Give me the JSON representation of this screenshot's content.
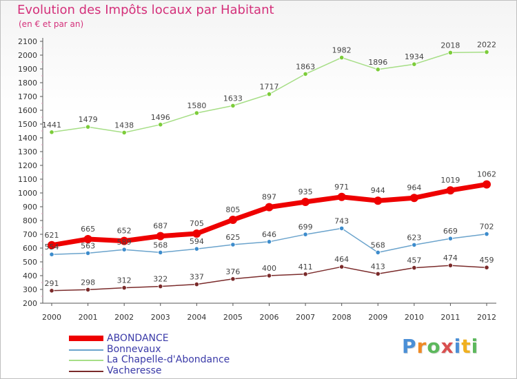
{
  "header": {
    "title": "Evolution des Impôts locaux par Habitant",
    "subtitle": "(en € et par an)"
  },
  "logo": {
    "text": "Proxiti"
  },
  "chart_data": {
    "type": "line",
    "x": [
      "2000",
      "2001",
      "2002",
      "2003",
      "2004",
      "2005",
      "2006",
      "2007",
      "2008",
      "2009",
      "2010",
      "2011",
      "2012"
    ],
    "ylim": [
      200,
      2100
    ],
    "yticks": [
      200,
      300,
      400,
      500,
      600,
      700,
      800,
      900,
      1000,
      1100,
      1200,
      1300,
      1400,
      1500,
      1600,
      1700,
      1800,
      1900,
      2000,
      2100
    ],
    "grid": false,
    "legend_position": "bottom-left",
    "series": [
      {
        "name": "ABONDANCE",
        "color": "#ee0000",
        "point_color": "#ee0000",
        "width": 7,
        "values": [
          621,
          665,
          652,
          687,
          705,
          805,
          897,
          935,
          971,
          944,
          964,
          1019,
          1062
        ]
      },
      {
        "name": "Bonnevaux",
        "color": "#6aa3cc",
        "point_color": "#3d8ccc",
        "width": 1.5,
        "values": [
          554,
          563,
          589,
          568,
          594,
          625,
          646,
          699,
          743,
          568,
          623,
          669,
          702
        ]
      },
      {
        "name": "La Chapelle-d'Abondance",
        "color": "#a6de86",
        "point_color": "#7ccc3a",
        "width": 1.5,
        "values": [
          1441,
          1479,
          1438,
          1496,
          1580,
          1633,
          1717,
          1863,
          1982,
          1896,
          1934,
          2018,
          2022
        ]
      },
      {
        "name": "Vacheresse",
        "color": "#7a2a2a",
        "point_color": "#7a2a2a",
        "width": 1.5,
        "values": [
          291,
          298,
          312,
          322,
          337,
          376,
          400,
          411,
          464,
          413,
          457,
          474,
          459
        ]
      }
    ]
  }
}
